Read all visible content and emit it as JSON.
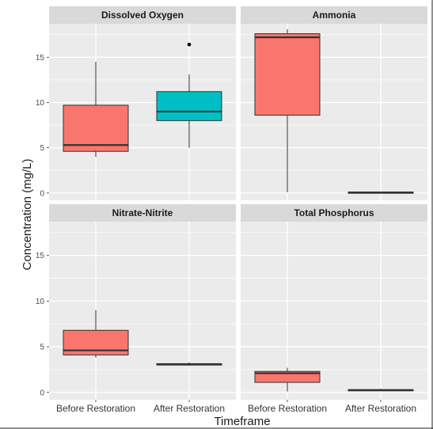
{
  "chart_data": {
    "type": "boxplot",
    "xlabel": "Timeframe",
    "ylabel": "Concentration (mg/L)",
    "categories": [
      "Before Restoration",
      "After Restoration"
    ],
    "ylim": [
      -0.8,
      18.7
    ],
    "yticks": [
      0,
      5,
      10,
      15
    ],
    "grid": true,
    "legend": "none",
    "colors": {
      "Before Restoration": "#F8766D",
      "After Restoration": "#00BFC4",
      "panel_bg": "#EBEBEB",
      "strip_bg": "#D9D9D9"
    },
    "panels": [
      {
        "title": "Dissolved Oxygen",
        "boxes": [
          {
            "category": "Before Restoration",
            "min": 4.0,
            "q1": 4.6,
            "median": 5.3,
            "q3": 9.7,
            "max": 14.5,
            "outliers": []
          },
          {
            "category": "After Restoration",
            "min": 5.0,
            "q1": 8.0,
            "median": 9.0,
            "q3": 11.2,
            "max": 13.1,
            "outliers": [
              16.4
            ]
          }
        ]
      },
      {
        "title": "Ammonia",
        "boxes": [
          {
            "category": "Before Restoration",
            "min": 0.1,
            "q1": 8.6,
            "median": 17.2,
            "q3": 17.6,
            "max": 18.1,
            "outliers": []
          },
          {
            "category": "After Restoration",
            "min": 0.03,
            "q1": 0.05,
            "median": 0.07,
            "q3": 0.1,
            "max": 0.12,
            "outliers": []
          }
        ]
      },
      {
        "title": "Nitrate-Nitrite",
        "boxes": [
          {
            "category": "Before Restoration",
            "min": 3.8,
            "q1": 4.1,
            "median": 4.6,
            "q3": 6.8,
            "max": 9.0,
            "outliers": []
          },
          {
            "category": "After Restoration",
            "min": 2.9,
            "q1": 3.0,
            "median": 3.05,
            "q3": 3.15,
            "max": 3.3,
            "outliers": []
          }
        ]
      },
      {
        "title": "Total Phosphorus",
        "boxes": [
          {
            "category": "Before Restoration",
            "min": 0.1,
            "q1": 1.1,
            "median": 2.1,
            "q3": 2.3,
            "max": 2.7,
            "outliers": []
          },
          {
            "category": "After Restoration",
            "min": 0.15,
            "q1": 0.2,
            "median": 0.25,
            "q3": 0.3,
            "max": 0.4,
            "outliers": []
          }
        ]
      }
    ]
  }
}
